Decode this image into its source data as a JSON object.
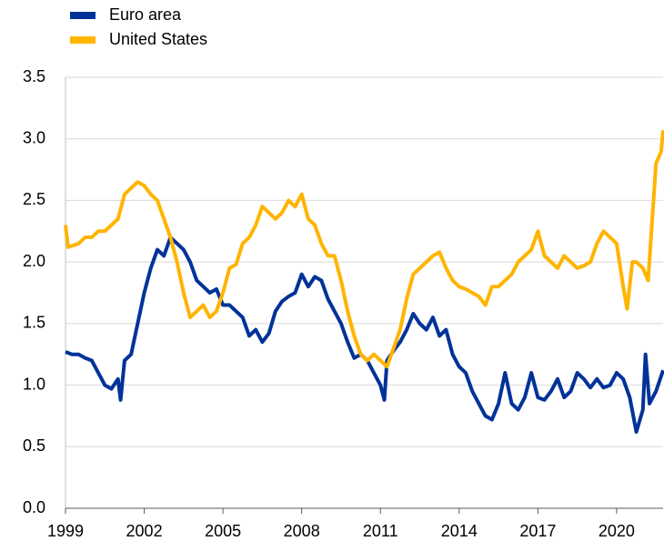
{
  "chart_data": {
    "type": "line",
    "xlim": [
      1999,
      2021.77
    ],
    "xticks": [
      1999,
      2002,
      2005,
      2008,
      2011,
      2014,
      2017,
      2020
    ],
    "ylim": [
      0,
      3.5
    ],
    "yticks": [
      {
        "value": 0,
        "label": "0.0"
      },
      0.5,
      {
        "value": 1,
        "label": "1.0"
      },
      1.5,
      {
        "value": 2,
        "label": "2.0"
      },
      2.5,
      {
        "value": 3,
        "label": "3.0"
      },
      3.5
    ],
    "grid": true,
    "legend": "top-left",
    "series": [
      {
        "name": "Euro area",
        "color": "#003299",
        "x": [
          1999,
          1999.25,
          1999.5,
          1999.75,
          2000,
          2000.25,
          2000.5,
          2000.75,
          2001,
          2001.1,
          2001.25,
          2001.5,
          2001.75,
          2002,
          2002.25,
          2002.5,
          2002.75,
          2003,
          2003.25,
          2003.5,
          2003.75,
          2004,
          2004.25,
          2004.5,
          2004.75,
          2005,
          2005.25,
          2005.5,
          2005.75,
          2006,
          2006.25,
          2006.5,
          2006.75,
          2007,
          2007.25,
          2007.5,
          2007.75,
          2008,
          2008.25,
          2008.5,
          2008.75,
          2009,
          2009.25,
          2009.5,
          2009.75,
          2010,
          2010.25,
          2010.5,
          2010.75,
          2011,
          2011.15,
          2011.25,
          2011.5,
          2011.75,
          2012,
          2012.25,
          2012.5,
          2012.75,
          2013,
          2013.25,
          2013.5,
          2013.75,
          2014,
          2014.25,
          2014.5,
          2014.75,
          2015,
          2015.25,
          2015.5,
          2015.75,
          2016,
          2016.25,
          2016.5,
          2016.75,
          2017,
          2017.25,
          2017.5,
          2017.75,
          2018,
          2018.25,
          2018.5,
          2018.75,
          2019,
          2019.25,
          2019.5,
          2019.75,
          2020,
          2020.25,
          2020.5,
          2020.75,
          2021,
          2021.1,
          2021.25,
          2021.5,
          2021.77
        ],
        "values": [
          1.27,
          1.25,
          1.25,
          1.22,
          1.2,
          1.1,
          1.0,
          0.97,
          1.05,
          0.88,
          1.2,
          1.25,
          1.5,
          1.75,
          1.95,
          2.1,
          2.05,
          2.2,
          2.15,
          2.1,
          2.0,
          1.85,
          1.8,
          1.75,
          1.78,
          1.65,
          1.65,
          1.6,
          1.55,
          1.4,
          1.45,
          1.35,
          1.42,
          1.6,
          1.68,
          1.72,
          1.75,
          1.9,
          1.8,
          1.88,
          1.85,
          1.7,
          1.6,
          1.5,
          1.35,
          1.22,
          1.25,
          1.2,
          1.1,
          1.0,
          0.88,
          1.2,
          1.28,
          1.35,
          1.45,
          1.58,
          1.5,
          1.45,
          1.55,
          1.4,
          1.45,
          1.25,
          1.15,
          1.1,
          0.95,
          0.85,
          0.75,
          0.72,
          0.85,
          1.1,
          0.85,
          0.8,
          0.9,
          1.1,
          0.9,
          0.88,
          0.95,
          1.05,
          0.9,
          0.95,
          1.1,
          1.05,
          0.98,
          1.05,
          0.98,
          1.0,
          1.1,
          1.05,
          0.9,
          0.62,
          0.8,
          1.25,
          0.85,
          0.95,
          1.12
        ]
      },
      {
        "name": "United States",
        "color": "#ffb400",
        "x": [
          1999,
          1999.1,
          1999.5,
          1999.75,
          2000,
          2000.25,
          2000.5,
          2000.75,
          2001,
          2001.25,
          2001.5,
          2001.75,
          2002,
          2002.25,
          2002.5,
          2002.75,
          2003,
          2003.25,
          2003.5,
          2003.75,
          2004,
          2004.25,
          2004.5,
          2004.75,
          2005,
          2005.25,
          2005.5,
          2005.75,
          2006,
          2006.25,
          2006.5,
          2006.75,
          2007,
          2007.25,
          2007.5,
          2007.75,
          2008,
          2008.25,
          2008.5,
          2008.75,
          2009,
          2009.25,
          2009.5,
          2009.75,
          2010,
          2010.25,
          2010.5,
          2010.75,
          2011,
          2011.25,
          2011.5,
          2011.75,
          2012,
          2012.25,
          2012.5,
          2012.75,
          2013,
          2013.25,
          2013.5,
          2013.75,
          2014,
          2014.25,
          2014.5,
          2014.75,
          2015,
          2015.25,
          2015.5,
          2015.75,
          2016,
          2016.25,
          2016.5,
          2016.75,
          2017,
          2017.25,
          2017.5,
          2017.75,
          2018,
          2018.25,
          2018.5,
          2018.75,
          2019,
          2019.25,
          2019.5,
          2019.75,
          2020,
          2020.25,
          2020.4,
          2020.6,
          2020.75,
          2021,
          2021.2,
          2021.5,
          2021.7,
          2021.77
        ],
        "values": [
          2.3,
          2.12,
          2.15,
          2.2,
          2.2,
          2.25,
          2.25,
          2.3,
          2.35,
          2.55,
          2.6,
          2.65,
          2.62,
          2.55,
          2.5,
          2.35,
          2.2,
          2.0,
          1.75,
          1.55,
          1.6,
          1.65,
          1.55,
          1.6,
          1.75,
          1.95,
          1.98,
          2.15,
          2.2,
          2.3,
          2.45,
          2.4,
          2.35,
          2.4,
          2.5,
          2.45,
          2.55,
          2.35,
          2.3,
          2.15,
          2.05,
          2.05,
          1.85,
          1.6,
          1.4,
          1.25,
          1.2,
          1.25,
          1.2,
          1.15,
          1.3,
          1.45,
          1.7,
          1.9,
          1.95,
          2.0,
          2.05,
          2.08,
          1.95,
          1.85,
          1.8,
          1.78,
          1.75,
          1.72,
          1.65,
          1.8,
          1.8,
          1.85,
          1.9,
          2.0,
          2.05,
          2.1,
          2.25,
          2.05,
          2.0,
          1.95,
          2.05,
          2.0,
          1.95,
          1.97,
          2.0,
          2.15,
          2.25,
          2.2,
          2.15,
          1.8,
          1.62,
          2.0,
          2.0,
          1.95,
          1.85,
          2.8,
          2.9,
          3.07
        ]
      }
    ]
  }
}
